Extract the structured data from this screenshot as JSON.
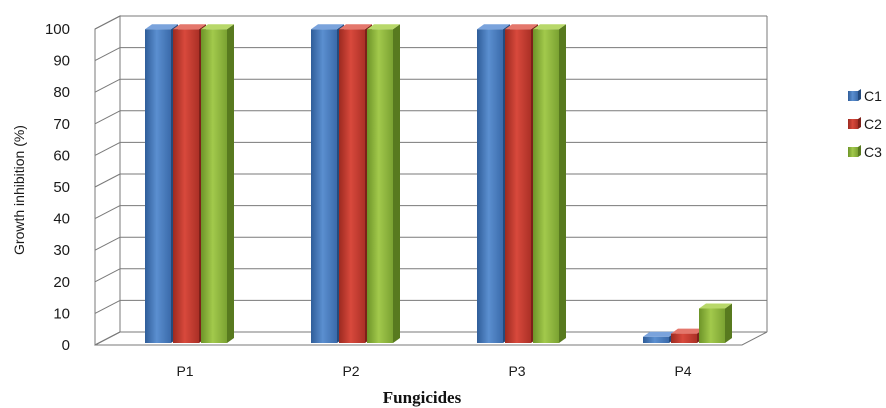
{
  "chart_data": {
    "type": "bar",
    "title": "",
    "xlabel": "Fungicides",
    "ylabel": "Growth inhibition (%)",
    "categories": [
      "P1",
      "P2",
      "P3",
      "P4"
    ],
    "yticks": [
      "0",
      "10",
      "20",
      "30",
      "40",
      "50",
      "60",
      "70",
      "80",
      "90",
      "100"
    ],
    "ylim": [
      0,
      100
    ],
    "grid": true,
    "legend_position": "right",
    "series": [
      {
        "name": "C1",
        "color": "#4a7ebf",
        "values": [
          100,
          100,
          100,
          2
        ]
      },
      {
        "name": "C2",
        "color": "#c0392b",
        "values": [
          100,
          100,
          100,
          3
        ]
      },
      {
        "name": "C3",
        "color": "#8db53a",
        "values": [
          100,
          100,
          100,
          11
        ]
      }
    ]
  }
}
